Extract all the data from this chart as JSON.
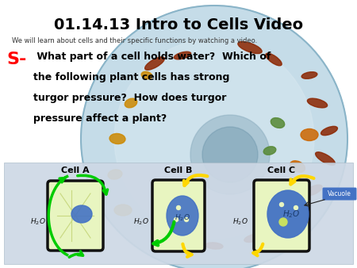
{
  "title": "01.14.13 Intro to Cells Video",
  "subtitle": "We will learn about cells and their specific functions by watching a video.",
  "s_label": "S-",
  "question_line1": " What part of a cell holds water?  Which of",
  "question_line2": "the following plant cells has strong",
  "question_line3": "turgor pressure?  How does turgor",
  "question_line4": "pressure affect a plant?",
  "cell_labels": [
    "Cell A",
    "Cell B",
    "Cell C"
  ],
  "vacuole_label": "Vacuole",
  "bg_color": "#ffffff",
  "cell_bg_color": "#b8d4e8",
  "bottom_panel_bg": "#d0d8e8",
  "title_color": "#000000",
  "subtitle_color": "#333333",
  "s_color": "#ff0000",
  "question_color": "#000000",
  "cell_label_color": "#000000",
  "vacuole_bg": "#4472c4",
  "vacuole_text": "#ffffff",
  "cell_wall_color": "#1a1a1a",
  "cell_fill_light": "#e8f5c0",
  "vacuole_blue": "#4472c4",
  "arrow_green": "#00b050",
  "arrow_yellow": "#ffd700",
  "organelle_colors": [
    "#cc4400",
    "#884400",
    "#cc6600",
    "#aa2200",
    "#553300",
    "#775500"
  ],
  "title_fontsize": 14,
  "subtitle_fontsize": 6,
  "question_fontsize": 9,
  "s_fontsize": 16,
  "cell_label_fontsize": 8
}
